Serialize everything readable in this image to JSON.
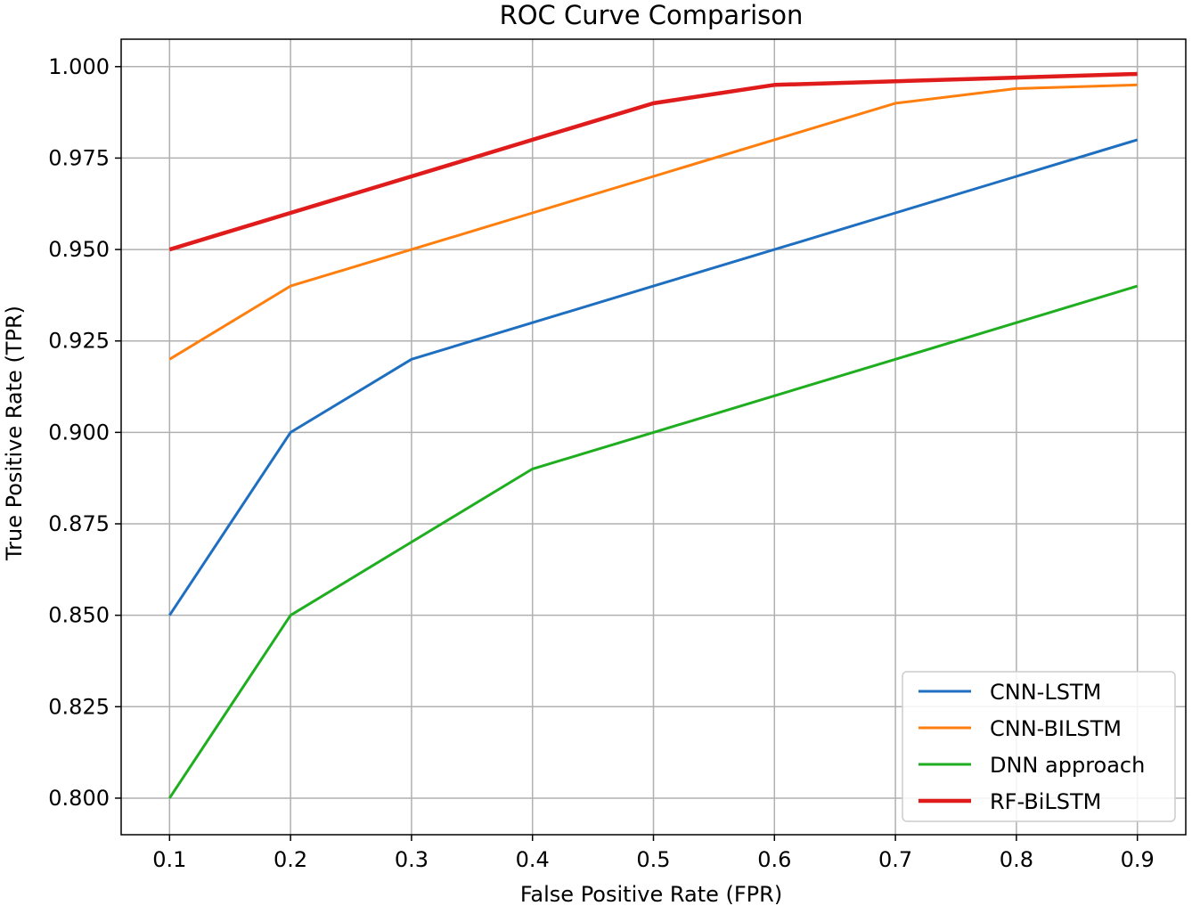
{
  "chart_data": {
    "type": "line",
    "title": "ROC Curve Comparison",
    "xlabel": "False Positive Rate (FPR)",
    "ylabel": "True Positive Rate (TPR)",
    "x": [
      0.1,
      0.2,
      0.3,
      0.4,
      0.5,
      0.6,
      0.7,
      0.8,
      0.9
    ],
    "xticks": [
      "0.1",
      "0.2",
      "0.3",
      "0.4",
      "0.5",
      "0.6",
      "0.7",
      "0.8",
      "0.9"
    ],
    "yticks": [
      "0.800",
      "0.825",
      "0.850",
      "0.875",
      "0.900",
      "0.925",
      "0.950",
      "0.975",
      "1.000"
    ],
    "xlim": [
      0.06,
      0.94
    ],
    "ylim": [
      0.79,
      1.0075
    ],
    "grid": true,
    "legend_position": "bottom-right",
    "series": [
      {
        "name": "CNN-LSTM",
        "color": "#1f6fc1",
        "values": [
          0.85,
          0.9,
          0.92,
          0.93,
          0.94,
          0.95,
          0.96,
          0.97,
          0.98
        ]
      },
      {
        "name": "CNN-BILSTM",
        "color": "#ff7f0e",
        "values": [
          0.92,
          0.94,
          0.95,
          0.96,
          0.97,
          0.98,
          0.99,
          0.994,
          0.995
        ]
      },
      {
        "name": "DNN approach",
        "color": "#1fae1f",
        "values": [
          0.8,
          0.85,
          0.87,
          0.89,
          0.9,
          0.91,
          0.92,
          0.93,
          0.94
        ]
      },
      {
        "name": "RF-BiLSTM",
        "color": "#e01b1b",
        "values": [
          0.95,
          0.96,
          0.97,
          0.98,
          0.99,
          0.995,
          0.996,
          0.997,
          0.998
        ]
      }
    ]
  }
}
